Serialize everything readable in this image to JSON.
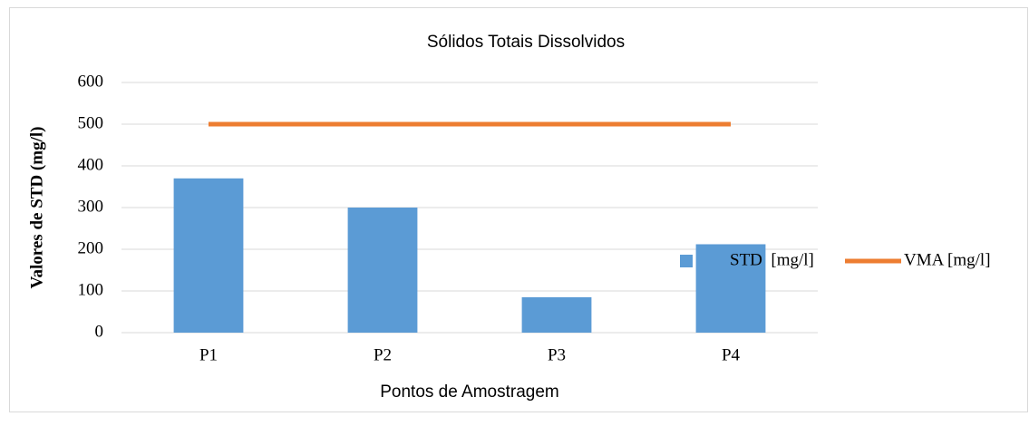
{
  "chart_data": {
    "type": "bar",
    "title": "Sólidos Totais Dissolvidos",
    "xlabel": "Pontos de Amostragem",
    "ylabel": "Valores de STD (mg/l)",
    "categories": [
      "P1",
      "P2",
      "P3",
      "P4"
    ],
    "series": [
      {
        "name": "STD  [mg/l]",
        "type": "bar",
        "color": "#5b9bd5",
        "values": [
          370,
          300,
          85,
          212
        ]
      },
      {
        "name": "VMA [mg/l]",
        "type": "line",
        "color": "#ed7d31",
        "values": [
          500,
          500,
          500,
          500
        ]
      }
    ],
    "ylim": [
      0,
      600
    ],
    "yticks": [
      0,
      100,
      200,
      300,
      400,
      500,
      600
    ],
    "grid": true,
    "legend": "right"
  }
}
